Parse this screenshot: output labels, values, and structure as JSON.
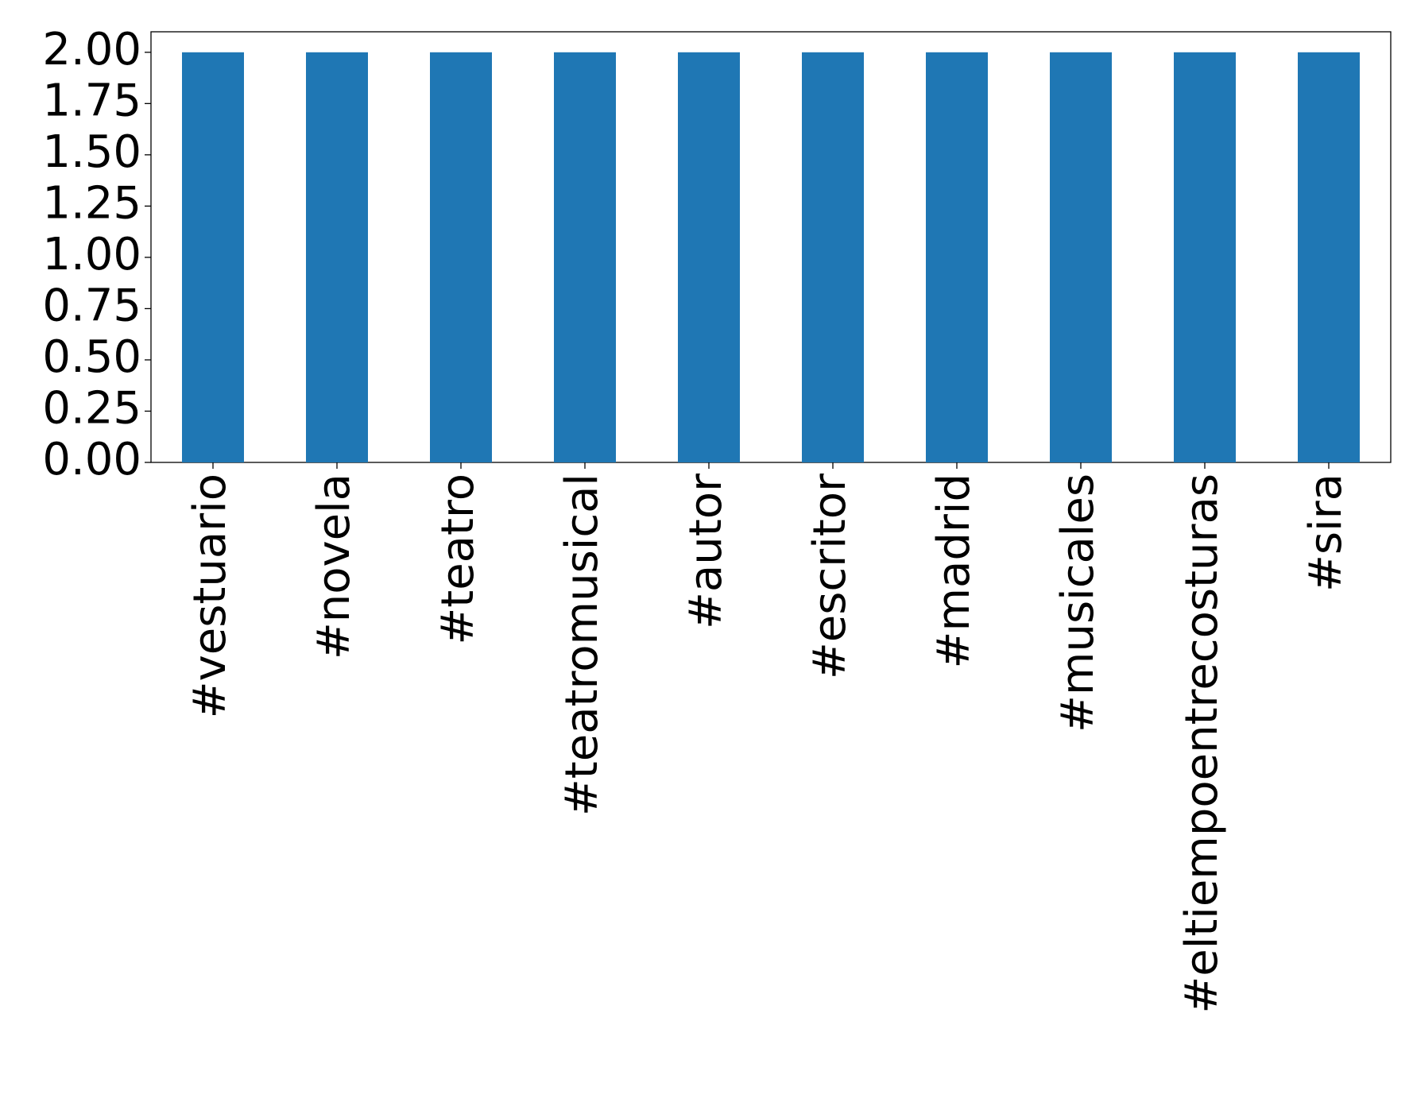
{
  "chart_data": {
    "type": "bar",
    "categories": [
      "#vestuario",
      "#novela",
      "#teatro",
      "#teatromusical",
      "#autor",
      "#escritor",
      "#madrid",
      "#musicales",
      "#eltiempoentrecosturas",
      "#sira"
    ],
    "values": [
      2,
      2,
      2,
      2,
      2,
      2,
      2,
      2,
      2,
      2
    ],
    "color": "#1f77b4",
    "ylim": [
      0,
      2.1
    ],
    "yticks": [
      {
        "value": 0,
        "label": "0.00"
      },
      {
        "value": 0.25,
        "label": "0.25"
      },
      {
        "value": 0.5,
        "label": "0.50"
      },
      {
        "value": 0.75,
        "label": "0.75"
      },
      {
        "value": 1,
        "label": "1.00"
      },
      {
        "value": 1.25,
        "label": "1.25"
      },
      {
        "value": 1.5,
        "label": "1.50"
      },
      {
        "value": 1.75,
        "label": "1.75"
      },
      {
        "value": 2,
        "label": "2.00"
      }
    ],
    "grid": false
  }
}
